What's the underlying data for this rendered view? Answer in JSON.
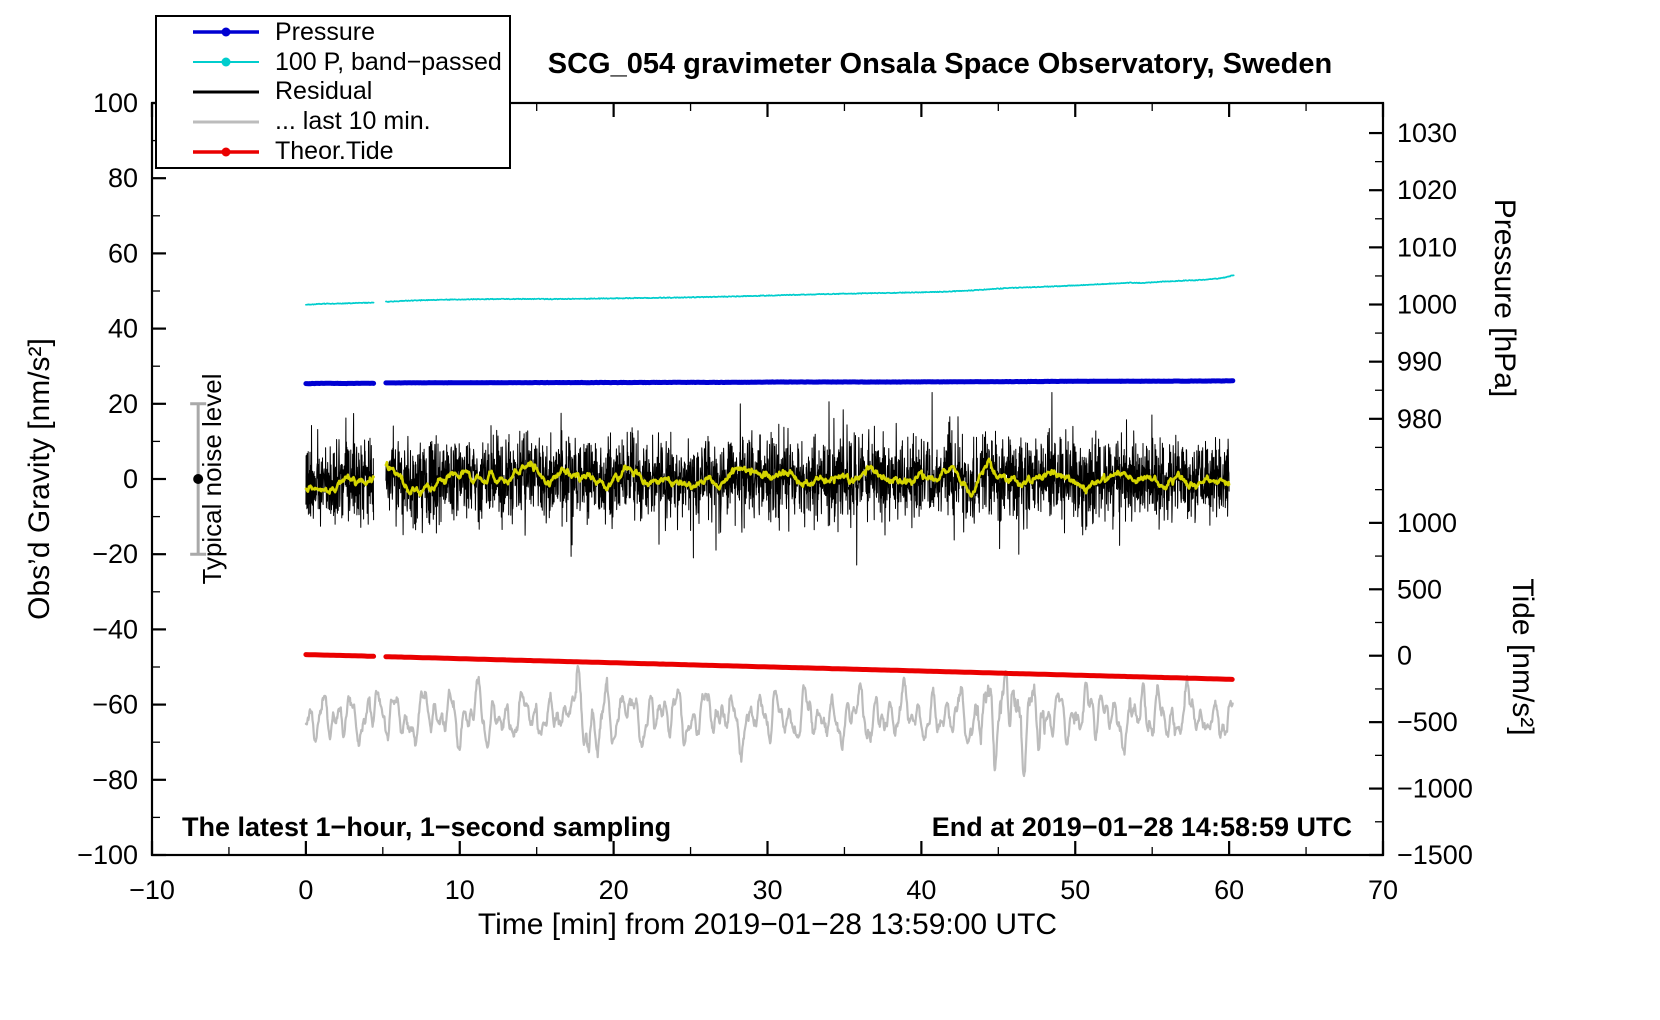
{
  "title": "SCG_054 gravimeter Onsala Space Observatory, Sweden",
  "annotations": {
    "sampling_note": "The latest 1−hour, 1−second sampling",
    "end_note": "End at 2019−01−28 14:58:59 UTC",
    "noise_label": "Typical noise level"
  },
  "legend": {
    "items": [
      {
        "id": "pressure",
        "label": "Pressure",
        "color": "#0000d2",
        "marker": true,
        "width": 3.5
      },
      {
        "id": "band-passed",
        "label": "100 P, band−passed",
        "color": "#00cdcd",
        "marker": true,
        "width": 2
      },
      {
        "id": "residual",
        "label": "Residual",
        "color": "#000000",
        "marker": false,
        "width": 3
      },
      {
        "id": "last10",
        "label": "... last 10 min.",
        "color": "#bcbcbc",
        "marker": false,
        "width": 3
      },
      {
        "id": "theor-tide",
        "label": "Theor.Tide",
        "color": "#ea0000",
        "marker": true,
        "width": 3.5
      }
    ]
  },
  "chart_data": {
    "type": "line",
    "title": "SCG_054 gravimeter Onsala Space Observatory, Sweden",
    "xlabel": "Time [min] from 2019−01−28 13:59:00 UTC",
    "ylabel_left": "Obs’d Gravity [nm/s²]",
    "ylabel_pressure": "Pressure [hPa]",
    "ylabel_tide": "Tide [nm/s²]",
    "xlim": [
      -10,
      70
    ],
    "ylim": [
      -100,
      100
    ],
    "x_ticks": [
      -10,
      0,
      10,
      20,
      30,
      40,
      50,
      60,
      70
    ],
    "x_minor": [
      -5,
      5,
      15,
      25,
      35,
      45,
      55,
      65
    ],
    "y_ticks": [
      -100,
      -80,
      -60,
      -40,
      -20,
      0,
      20,
      40,
      60,
      80,
      100
    ],
    "y_minor": [
      -90,
      -70,
      -50,
      -30,
      -10,
      10,
      30,
      50,
      70,
      90
    ],
    "pressure_axis": {
      "ticks": [
        1030,
        1020,
        1010,
        1000,
        990,
        980
      ],
      "minor": [
        1035,
        1025,
        1015,
        1005,
        995,
        985,
        975
      ],
      "scale": 1.52,
      "offset": 969.47
    },
    "tide_axis": {
      "ticks": [
        1000,
        500,
        0,
        -500,
        -1000,
        -1500
      ],
      "minor": [
        1250,
        750,
        250,
        -250,
        -750,
        -1250
      ],
      "scale": 0.0353333,
      "offset_g": -47
    },
    "gap": [
      4.4,
      5.2
    ],
    "seed": 20190128,
    "series": {
      "pressure": {
        "color": "#0000d2",
        "width": 5,
        "noise": 0.035,
        "step": 0.08,
        "units": "left-axis nm/s2 (≈986–987 hPa)",
        "segments": [
          [
            [
              0,
              25.35
            ],
            [
              1.2,
              25.45
            ],
            [
              2.5,
              25.4
            ],
            [
              3.5,
              25.45
            ],
            [
              4.4,
              25.45
            ]
          ],
          [
            [
              5.2,
              25.55
            ],
            [
              8,
              25.6
            ],
            [
              12,
              25.6
            ],
            [
              16,
              25.65
            ],
            [
              20,
              25.65
            ],
            [
              24,
              25.7
            ],
            [
              28,
              25.7
            ],
            [
              30.5,
              25.8
            ],
            [
              34,
              25.8
            ],
            [
              38,
              25.8
            ],
            [
              42,
              25.85
            ],
            [
              46,
              25.9
            ],
            [
              50,
              26.0
            ],
            [
              54,
              26.0
            ],
            [
              58,
              26.05
            ],
            [
              60.3,
              26.1
            ]
          ]
        ]
      },
      "band_passed": {
        "color": "#00cdcd",
        "width": 1.7,
        "noise": 0.1,
        "step": 0.05,
        "segments": [
          [
            [
              0,
              46.35
            ],
            [
              1,
              46.6
            ],
            [
              2.2,
              46.65
            ],
            [
              3.2,
              46.8
            ],
            [
              4.4,
              46.95
            ]
          ],
          [
            [
              5.2,
              47.15
            ],
            [
              6.5,
              47.4
            ],
            [
              8,
              47.6
            ],
            [
              10,
              47.75
            ],
            [
              12,
              47.85
            ],
            [
              14,
              47.9
            ],
            [
              16,
              47.85
            ],
            [
              18,
              47.95
            ],
            [
              20,
              48.05
            ],
            [
              22,
              48.15
            ],
            [
              24,
              48.25
            ],
            [
              26,
              48.4
            ],
            [
              28,
              48.55
            ],
            [
              30,
              48.8
            ],
            [
              32,
              49.0
            ],
            [
              34,
              49.2
            ],
            [
              36,
              49.35
            ],
            [
              38,
              49.5
            ],
            [
              40,
              49.65
            ],
            [
              41.5,
              49.8
            ],
            [
              43,
              50.1
            ],
            [
              44.5,
              50.5
            ],
            [
              46,
              50.85
            ],
            [
              47.5,
              51.05
            ],
            [
              49,
              51.3
            ],
            [
              50.5,
              51.6
            ],
            [
              52,
              51.9
            ],
            [
              53.5,
              52.2
            ],
            [
              54.5,
              52.15
            ],
            [
              55.5,
              52.45
            ],
            [
              57,
              52.75
            ],
            [
              58.5,
              53.0
            ],
            [
              59.5,
              53.4
            ],
            [
              60.3,
              54.2
            ]
          ]
        ]
      },
      "residual": {
        "color": "#000000",
        "width": 1.0,
        "mean": 0,
        "std": 5.5,
        "clip": 23,
        "x_start": 0,
        "x_end": 60,
        "sampling_seconds": 1
      },
      "residual_smooth": {
        "color": "#d4d400",
        "width": 2.6,
        "scale": 2.4,
        "window": 35
      },
      "last10": {
        "color": "#bcbcbc",
        "width": 2.2,
        "center": -63.2,
        "typical_amplitude": 7,
        "surge_window_min": [
          43.5,
          48
        ]
      },
      "tide": {
        "color": "#ea0000",
        "width": 5,
        "noise": 0.015,
        "step": 0.2,
        "segments": [
          [
            [
              0,
              -46.7
            ],
            [
              4.4,
              -47.15
            ]
          ],
          [
            [
              5.2,
              -47.25
            ],
            [
              60.3,
              -53.3
            ]
          ]
        ]
      }
    },
    "noise_marker": {
      "x": -7,
      "y": 0,
      "half": 20,
      "color": "#a9a9a9",
      "label_x": -5.5
    }
  }
}
